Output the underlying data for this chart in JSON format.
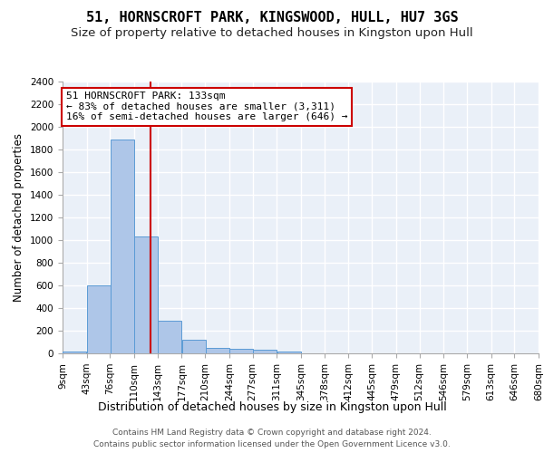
{
  "title1": "51, HORNSCROFT PARK, KINGSWOOD, HULL, HU7 3GS",
  "title2": "Size of property relative to detached houses in Kingston upon Hull",
  "xlabel": "Distribution of detached houses by size in Kingston upon Hull",
  "ylabel": "Number of detached properties",
  "footer1": "Contains HM Land Registry data © Crown copyright and database right 2024.",
  "footer2": "Contains public sector information licensed under the Open Government Licence v3.0.",
  "annotation_line1": "51 HORNSCROFT PARK: 133sqm",
  "annotation_line2": "← 83% of detached houses are smaller (3,311)",
  "annotation_line3": "16% of semi-detached houses are larger (646) →",
  "property_size": 133,
  "bins": [
    9,
    43,
    76,
    110,
    143,
    177,
    210,
    244,
    277,
    311,
    345,
    378,
    412,
    445,
    479,
    512,
    546,
    579,
    613,
    646,
    680
  ],
  "bar_heights": [
    20,
    600,
    1890,
    1030,
    290,
    120,
    50,
    40,
    30,
    20,
    0,
    0,
    0,
    0,
    0,
    0,
    0,
    0,
    0,
    0
  ],
  "bar_color": "#aec6e8",
  "bar_edge_color": "#5b9bd5",
  "red_line_color": "#cc0000",
  "annotation_box_color": "#cc0000",
  "ylim": [
    0,
    2400
  ],
  "yticks": [
    0,
    200,
    400,
    600,
    800,
    1000,
    1200,
    1400,
    1600,
    1800,
    2000,
    2200,
    2400
  ],
  "background_color": "#eaf0f8",
  "grid_color": "#ffffff",
  "title1_fontsize": 11,
  "title2_fontsize": 9.5,
  "xlabel_fontsize": 9,
  "ylabel_fontsize": 8.5,
  "tick_fontsize": 7.5,
  "annotation_fontsize": 8,
  "footer_fontsize": 6.5
}
